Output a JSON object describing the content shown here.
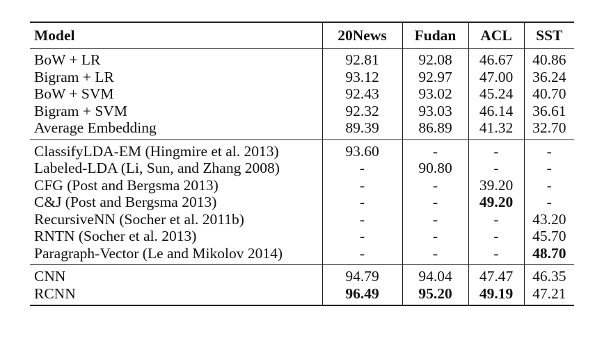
{
  "columns": [
    "Model",
    "20News",
    "Fudan",
    "ACL",
    "SST"
  ],
  "groups": [
    [
      {
        "model": "BoW + LR",
        "20news": "92.81",
        "fudan": "92.08",
        "acl": "46.67",
        "sst": "40.86",
        "bold": []
      },
      {
        "model": "Bigram + LR",
        "20news": "93.12",
        "fudan": "92.97",
        "acl": "47.00",
        "sst": "36.24",
        "bold": []
      },
      {
        "model": "BoW + SVM",
        "20news": "92.43",
        "fudan": "93.02",
        "acl": "45.24",
        "sst": "40.70",
        "bold": []
      },
      {
        "model": "Bigram + SVM",
        "20news": "92.32",
        "fudan": "93.03",
        "acl": "46.14",
        "sst": "36.61",
        "bold": []
      },
      {
        "model": "Average Embedding",
        "20news": "89.39",
        "fudan": "86.89",
        "acl": "41.32",
        "sst": "32.70",
        "bold": []
      }
    ],
    [
      {
        "model": "ClassifyLDA-EM (Hingmire et al. 2013)",
        "20news": "93.60",
        "fudan": "-",
        "acl": "-",
        "sst": "-",
        "bold": []
      },
      {
        "model": "Labeled-LDA (Li, Sun, and Zhang 2008)",
        "20news": "-",
        "fudan": "90.80",
        "acl": "-",
        "sst": "-",
        "bold": []
      },
      {
        "model": "CFG (Post and Bergsma 2013)",
        "20news": "-",
        "fudan": "-",
        "acl": "39.20",
        "sst": "-",
        "bold": []
      },
      {
        "model": "C&J (Post and Bergsma 2013)",
        "20news": "-",
        "fudan": "-",
        "acl": "49.20",
        "sst": "-",
        "bold": [
          "acl"
        ]
      },
      {
        "model": "RecursiveNN (Socher et al. 2011b)",
        "20news": "-",
        "fudan": "-",
        "acl": "-",
        "sst": "43.20",
        "bold": []
      },
      {
        "model": "RNTN (Socher et al. 2013)",
        "20news": "-",
        "fudan": "-",
        "acl": "-",
        "sst": "45.70",
        "bold": []
      },
      {
        "model": "Paragraph-Vector (Le and Mikolov 2014)",
        "20news": "-",
        "fudan": "-",
        "acl": "-",
        "sst": "48.70",
        "bold": [
          "sst"
        ]
      }
    ],
    [
      {
        "model": "CNN",
        "20news": "94.79",
        "fudan": "94.04",
        "acl": "47.47",
        "sst": "46.35",
        "bold": []
      },
      {
        "model": "RCNN",
        "20news": "96.49",
        "fudan": "95.20",
        "acl": "49.19",
        "sst": "47.21",
        "bold": [
          "20news",
          "fudan",
          "acl"
        ]
      }
    ]
  ]
}
